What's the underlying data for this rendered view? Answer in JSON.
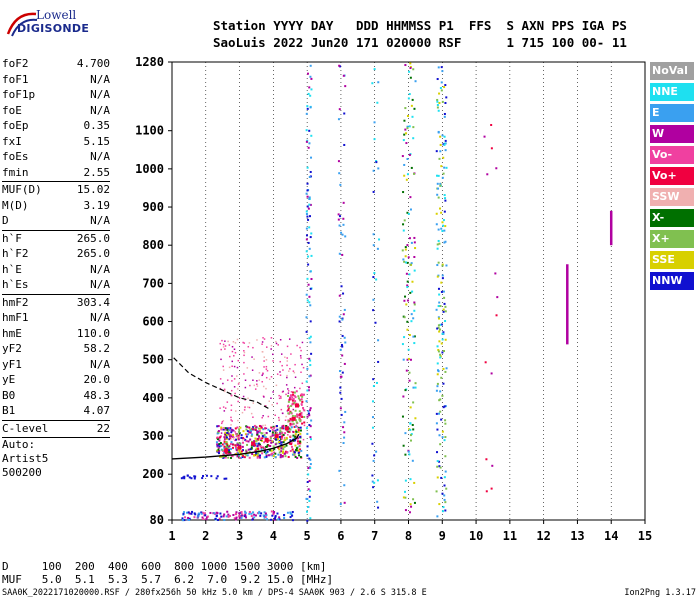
{
  "logo": {
    "line1": "Lowell",
    "line2": "DIGISONDE"
  },
  "header": {
    "line1": "Station YYYY DAY   DDD HHMMSS P1  FFS  S AXN PPS IGA PS",
    "line2": "SaoLuis 2022 Jun20 171 020000 RSF      1 715 100 00- 11"
  },
  "params": {
    "g1": [
      [
        "foF2",
        "4.700"
      ],
      [
        "foF1",
        "N/A"
      ],
      [
        "foF1p",
        "N/A"
      ],
      [
        "foE",
        "N/A"
      ],
      [
        "foEp",
        "0.35"
      ],
      [
        "fxI",
        "5.15"
      ],
      [
        "foEs",
        "N/A"
      ],
      [
        "fmin",
        "2.55"
      ]
    ],
    "g2": [
      [
        "MUF(D)",
        "15.02"
      ],
      [
        "M(D)",
        "3.19"
      ],
      [
        "D",
        "N/A"
      ]
    ],
    "g3": [
      [
        "h`F",
        "265.0"
      ],
      [
        "h`F2",
        "265.0"
      ],
      [
        "h`E",
        "N/A"
      ],
      [
        "h`Es",
        "N/A"
      ]
    ],
    "g4": [
      [
        "hmF2",
        "303.4"
      ],
      [
        "hmF1",
        "N/A"
      ],
      [
        "hmE",
        "110.0"
      ],
      [
        "yF2",
        "58.2"
      ],
      [
        "yF1",
        "N/A"
      ],
      [
        "yE",
        "20.0"
      ],
      [
        "B0",
        "48.3"
      ],
      [
        "B1",
        "4.07"
      ]
    ],
    "g5": [
      [
        "C-level",
        "22"
      ]
    ],
    "auto": [
      "Auto:",
      "Artist5",
      "500200"
    ]
  },
  "legend": [
    {
      "label": "NoVal",
      "color": "#a0a0a0"
    },
    {
      "label": "NNE",
      "color": "#1ee0f0"
    },
    {
      "label": "E",
      "color": "#3aa0f0"
    },
    {
      "label": "W",
      "color": "#b000a0"
    },
    {
      "label": "Vo-",
      "color": "#f040a0"
    },
    {
      "label": "Vo+",
      "color": "#f00040"
    },
    {
      "label": "SSW",
      "color": "#f0b0b0"
    },
    {
      "label": "X-",
      "color": "#007000"
    },
    {
      "label": "X+",
      "color": "#80c050"
    },
    {
      "label": "SSE",
      "color": "#d8d000"
    },
    {
      "label": "NNW",
      "color": "#1010d0"
    }
  ],
  "footer": {
    "line1": "D     100  200  400  600  800 1000 1500 3000 [km]",
    "line2": "MUF   5.0  5.1  5.3  5.7  6.2  7.0  9.2 15.0 [MHz]",
    "line3": "SAA0K_2022171020000.RSF / 280fx256h 50 kHz 5.0 km / DPS-4 SAA0K 903 / 2.6 S 315.8 E",
    "version": "Ion2Png 1.3.17"
  },
  "chart_data": {
    "type": "scatter",
    "title": "",
    "xlabel": "",
    "ylabel": "",
    "xlim": [
      1,
      15
    ],
    "ylim": [
      80,
      1280
    ],
    "xticks": [
      1,
      2,
      3,
      4,
      5,
      6,
      7,
      8,
      9,
      10,
      11,
      12,
      13,
      14,
      15
    ],
    "yticks": [
      80,
      200,
      300,
      400,
      500,
      600,
      700,
      800,
      900,
      1000,
      1100,
      1280
    ],
    "grid": "dotted vertical lines at integer frequencies",
    "legend_position": "right",
    "series": [
      {
        "name": "trace-echo",
        "color": "#f00040",
        "points": [
          [
            2.6,
            262
          ],
          [
            3.0,
            270
          ],
          [
            3.4,
            280
          ],
          [
            3.8,
            290
          ],
          [
            4.1,
            300
          ],
          [
            4.4,
            320
          ],
          [
            4.6,
            345
          ],
          [
            4.7,
            380
          ]
        ]
      },
      {
        "name": "vertical-line-f12.7",
        "color": "#b000a0",
        "points": [
          [
            12.7,
            540
          ],
          [
            12.7,
            750
          ]
        ]
      },
      {
        "name": "vertical-line-f14",
        "color": "#b000a0",
        "points": [
          [
            14.0,
            800
          ],
          [
            14.0,
            890
          ]
        ]
      }
    ],
    "curves": {
      "profile_solid": [
        [
          1.0,
          240
        ],
        [
          2.0,
          245
        ],
        [
          3.0,
          252
        ],
        [
          3.6,
          260
        ],
        [
          4.0,
          268
        ],
        [
          4.4,
          280
        ],
        [
          4.7,
          295
        ],
        [
          4.75,
          305
        ]
      ],
      "profile_dashed": [
        [
          1.05,
          505
        ],
        [
          1.5,
          465
        ],
        [
          2.0,
          440
        ],
        [
          2.5,
          420
        ],
        [
          3.0,
          400
        ],
        [
          3.5,
          390
        ],
        [
          3.9,
          370
        ]
      ]
    }
  }
}
